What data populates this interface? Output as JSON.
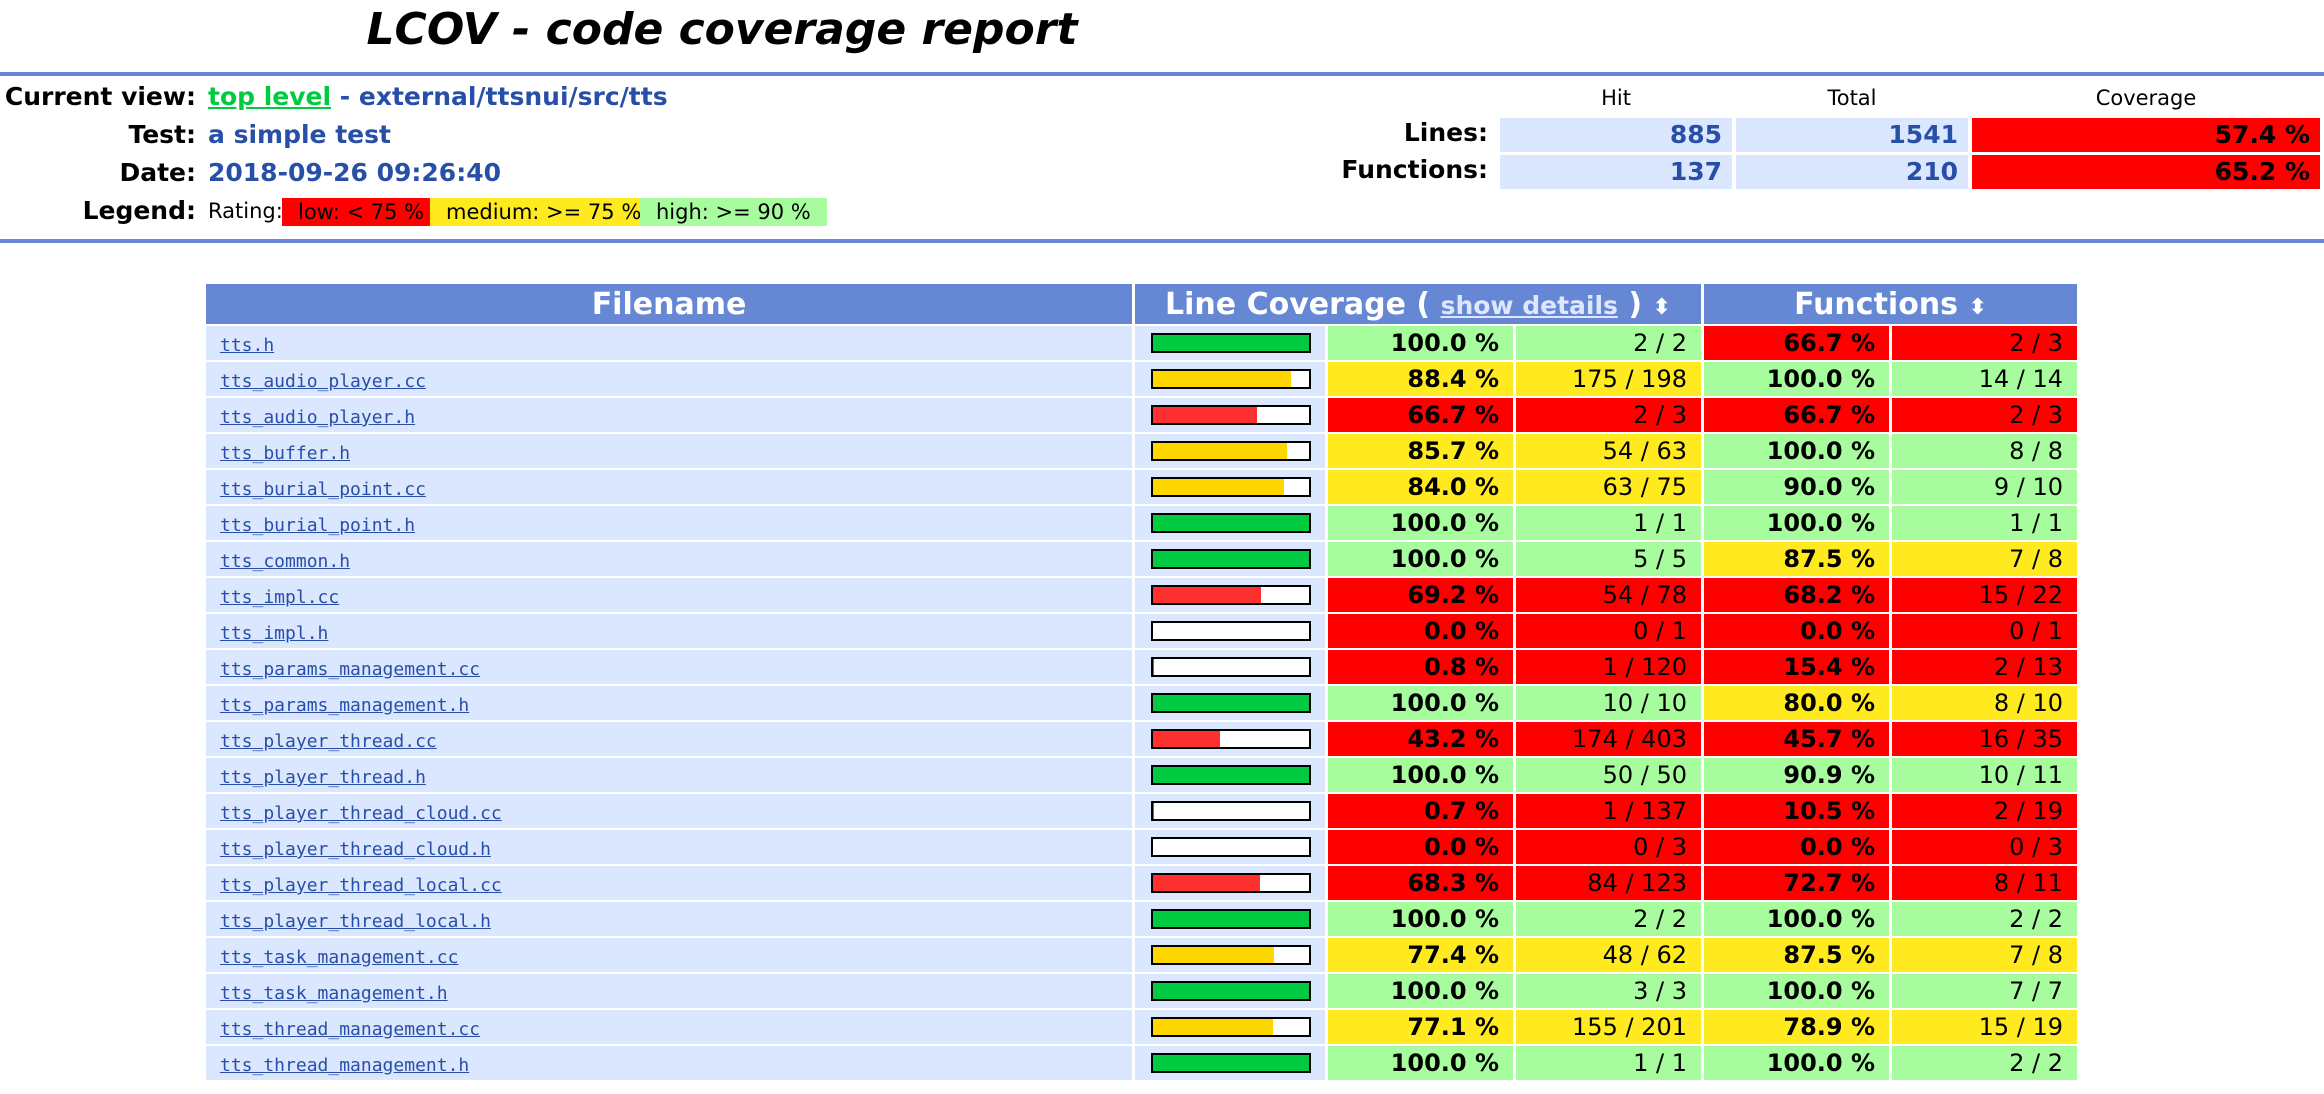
{
  "title": "LCOV - code coverage report",
  "header": {
    "current_view_label": "Current view:",
    "current_view_link": "top level",
    "current_view_path": "- external/ttsnui/src/tts",
    "test_label": "Test:",
    "test_value": "a simple test",
    "date_label": "Date:",
    "date_value": "2018-09-26 09:26:40",
    "legend_label": "Legend:",
    "legend_rating": "Rating:",
    "legend_low": "low: < 75 %",
    "legend_medium": "medium: >= 75 %",
    "legend_high": "high: >= 90 %"
  },
  "summary": {
    "hit_head": "Hit",
    "total_head": "Total",
    "coverage_head": "Coverage",
    "lines_label": "Lines:",
    "lines_hit": "885",
    "lines_total": "1541",
    "lines_cov": "57.4 %",
    "functions_label": "Functions:",
    "functions_hit": "137",
    "functions_total": "210",
    "functions_cov": "65.2 %"
  },
  "table": {
    "col_filename": "Filename",
    "col_line_coverage": "Line Coverage (",
    "col_show_details": "show details",
    "col_close_paren": ")",
    "col_functions": "Functions",
    "sort_glyph": "⬍"
  },
  "colors": {
    "high": "#a7fc9d",
    "medium": "#ffea20",
    "low": "#ff0000",
    "bar_high": "#00cb40",
    "bar_medium": "#ffd700",
    "bar_low": "#ff3030"
  },
  "rows": [
    {
      "file": "tts.h",
      "line_pct": 100.0,
      "line_pct_text": "100.0 %",
      "line_frac": "2 / 2",
      "line_rating": "hi",
      "func_pct_text": "66.7 %",
      "func_frac": "2 / 3",
      "func_rating": "lo"
    },
    {
      "file": "tts_audio_player.cc",
      "line_pct": 88.4,
      "line_pct_text": "88.4 %",
      "line_frac": "175 / 198",
      "line_rating": "med",
      "func_pct_text": "100.0 %",
      "func_frac": "14 / 14",
      "func_rating": "hi"
    },
    {
      "file": "tts_audio_player.h",
      "line_pct": 66.7,
      "line_pct_text": "66.7 %",
      "line_frac": "2 / 3",
      "line_rating": "lo",
      "func_pct_text": "66.7 %",
      "func_frac": "2 / 3",
      "func_rating": "lo"
    },
    {
      "file": "tts_buffer.h",
      "line_pct": 85.7,
      "line_pct_text": "85.7 %",
      "line_frac": "54 / 63",
      "line_rating": "med",
      "func_pct_text": "100.0 %",
      "func_frac": "8 / 8",
      "func_rating": "hi"
    },
    {
      "file": "tts_burial_point.cc",
      "line_pct": 84.0,
      "line_pct_text": "84.0 %",
      "line_frac": "63 / 75",
      "line_rating": "med",
      "func_pct_text": "90.0 %",
      "func_frac": "9 / 10",
      "func_rating": "hi"
    },
    {
      "file": "tts_burial_point.h",
      "line_pct": 100.0,
      "line_pct_text": "100.0 %",
      "line_frac": "1 / 1",
      "line_rating": "hi",
      "func_pct_text": "100.0 %",
      "func_frac": "1 / 1",
      "func_rating": "hi"
    },
    {
      "file": "tts_common.h",
      "line_pct": 100.0,
      "line_pct_text": "100.0 %",
      "line_frac": "5 / 5",
      "line_rating": "hi",
      "func_pct_text": "87.5 %",
      "func_frac": "7 / 8",
      "func_rating": "med"
    },
    {
      "file": "tts_impl.cc",
      "line_pct": 69.2,
      "line_pct_text": "69.2 %",
      "line_frac": "54 / 78",
      "line_rating": "lo",
      "func_pct_text": "68.2 %",
      "func_frac": "15 / 22",
      "func_rating": "lo"
    },
    {
      "file": "tts_impl.h",
      "line_pct": 0.0,
      "line_pct_text": "0.0 %",
      "line_frac": "0 / 1",
      "line_rating": "lo",
      "func_pct_text": "0.0 %",
      "func_frac": "0 / 1",
      "func_rating": "lo"
    },
    {
      "file": "tts_params_management.cc",
      "line_pct": 0.8,
      "line_pct_text": "0.8 %",
      "line_frac": "1 / 120",
      "line_rating": "lo",
      "func_pct_text": "15.4 %",
      "func_frac": "2 / 13",
      "func_rating": "lo"
    },
    {
      "file": "tts_params_management.h",
      "line_pct": 100.0,
      "line_pct_text": "100.0 %",
      "line_frac": "10 / 10",
      "line_rating": "hi",
      "func_pct_text": "80.0 %",
      "func_frac": "8 / 10",
      "func_rating": "med"
    },
    {
      "file": "tts_player_thread.cc",
      "line_pct": 43.2,
      "line_pct_text": "43.2 %",
      "line_frac": "174 / 403",
      "line_rating": "lo",
      "func_pct_text": "45.7 %",
      "func_frac": "16 / 35",
      "func_rating": "lo"
    },
    {
      "file": "tts_player_thread.h",
      "line_pct": 100.0,
      "line_pct_text": "100.0 %",
      "line_frac": "50 / 50",
      "line_rating": "hi",
      "func_pct_text": "90.9 %",
      "func_frac": "10 / 11",
      "func_rating": "hi"
    },
    {
      "file": "tts_player_thread_cloud.cc",
      "line_pct": 0.7,
      "line_pct_text": "0.7 %",
      "line_frac": "1 / 137",
      "line_rating": "lo",
      "func_pct_text": "10.5 %",
      "func_frac": "2 / 19",
      "func_rating": "lo"
    },
    {
      "file": "tts_player_thread_cloud.h",
      "line_pct": 0.0,
      "line_pct_text": "0.0 %",
      "line_frac": "0 / 3",
      "line_rating": "lo",
      "func_pct_text": "0.0 %",
      "func_frac": "0 / 3",
      "func_rating": "lo"
    },
    {
      "file": "tts_player_thread_local.cc",
      "line_pct": 68.3,
      "line_pct_text": "68.3 %",
      "line_frac": "84 / 123",
      "line_rating": "lo",
      "func_pct_text": "72.7 %",
      "func_frac": "8 / 11",
      "func_rating": "lo"
    },
    {
      "file": "tts_player_thread_local.h",
      "line_pct": 100.0,
      "line_pct_text": "100.0 %",
      "line_frac": "2 / 2",
      "line_rating": "hi",
      "func_pct_text": "100.0 %",
      "func_frac": "2 / 2",
      "func_rating": "hi"
    },
    {
      "file": "tts_task_management.cc",
      "line_pct": 77.4,
      "line_pct_text": "77.4 %",
      "line_frac": "48 / 62",
      "line_rating": "med",
      "func_pct_text": "87.5 %",
      "func_frac": "7 / 8",
      "func_rating": "med"
    },
    {
      "file": "tts_task_management.h",
      "line_pct": 100.0,
      "line_pct_text": "100.0 %",
      "line_frac": "3 / 3",
      "line_rating": "hi",
      "func_pct_text": "100.0 %",
      "func_frac": "7 / 7",
      "func_rating": "hi"
    },
    {
      "file": "tts_thread_management.cc",
      "line_pct": 77.1,
      "line_pct_text": "77.1 %",
      "line_frac": "155 / 201",
      "line_rating": "med",
      "func_pct_text": "78.9 %",
      "func_frac": "15 / 19",
      "func_rating": "med"
    },
    {
      "file": "tts_thread_management.h",
      "line_pct": 100.0,
      "line_pct_text": "100.0 %",
      "line_frac": "1 / 1",
      "line_rating": "hi",
      "func_pct_text": "100.0 %",
      "func_frac": "2 / 2",
      "func_rating": "hi"
    }
  ]
}
